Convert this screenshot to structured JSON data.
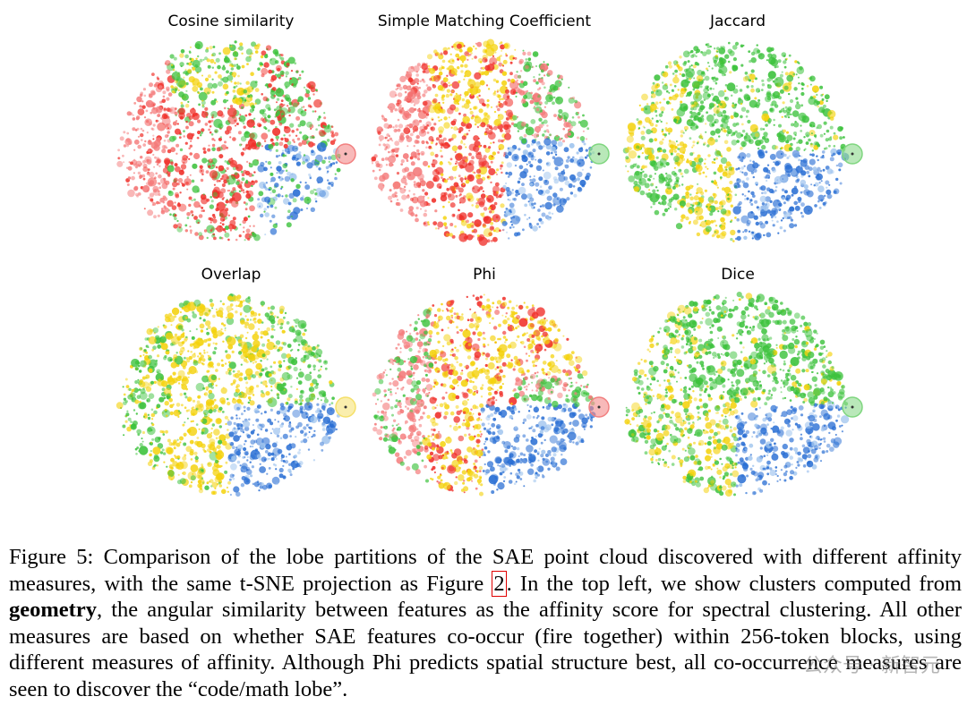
{
  "figure": {
    "panels": [
      {
        "title": "Cosine similarity",
        "scheme": "cosine",
        "seed": 11,
        "marker_color": "#f28080"
      },
      {
        "title": "Simple Matching Coefficient",
        "scheme": "smc",
        "seed": 23,
        "marker_color": "#7fd67f"
      },
      {
        "title": "Jaccard",
        "scheme": "jaccard",
        "seed": 37,
        "marker_color": "#7fd67f"
      },
      {
        "title": "Overlap",
        "scheme": "overlap",
        "seed": 41,
        "marker_color": "#f5e06a"
      },
      {
        "title": "Phi",
        "scheme": "phi",
        "seed": 53,
        "marker_color": "#f28080"
      },
      {
        "title": "Dice",
        "scheme": "dice",
        "seed": 67,
        "marker_color": "#7fd67f"
      }
    ],
    "colors": {
      "red": "#f0302a",
      "salmon": "#f47a7a",
      "yellow": "#f4d20c",
      "green": "#3cc23c",
      "blue": "#2a6fd4",
      "lightblue": "#9fc4ee"
    }
  },
  "caption": {
    "label": "Figure 5:",
    "part1": "Comparison of the lobe partitions of the SAE point cloud discovered with different affinity measures, with the same t-SNE projection as Figure",
    "ref": "2",
    "part2": ". In the top left, we show clusters computed from",
    "bold": "geometry",
    "part3": ", the angular similarity between features as the affinity score for spectral clustering. All other measures are based on whether SAE features co-occur (fire together) within 256-token blocks, using different measures of affinity. Although Phi predicts spatial structure best, all co-occurrence measures are seen to discover the “code/math lobe”."
  },
  "watermark": "公众号 · 新智元"
}
